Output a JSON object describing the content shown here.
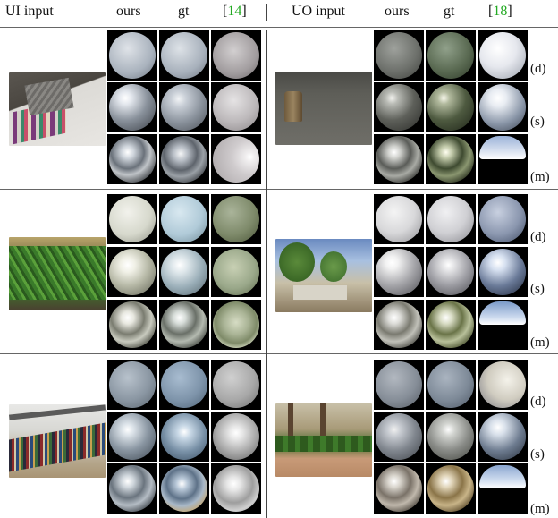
{
  "headers": {
    "ui_input": "UI input",
    "ours_left": "ours",
    "gt_left": "gt",
    "ref_left_open": "[",
    "ref_left_num": "14",
    "ref_left_close": "]",
    "uo_input": "UO input",
    "ours_right": "ours",
    "gt_right": "gt",
    "ref_right_open": "[",
    "ref_right_num": "18",
    "ref_right_close": "]"
  },
  "row_labels": {
    "d": "(d)",
    "s": "(s)",
    "m": "(m)"
  },
  "colors": {
    "citation": "#22aa22",
    "rule": "#666666",
    "tile_background": "#000000"
  },
  "groups": [
    {
      "left_photo": "indoor sofa with striped pillow",
      "right_photo": "outdoor wooden stump on pavement"
    },
    {
      "left_photo": "indoor green plant",
      "right_photo": "outdoor trees and fence"
    },
    {
      "left_photo": "indoor bookshelf",
      "right_photo": "outdoor garden path"
    }
  ]
}
